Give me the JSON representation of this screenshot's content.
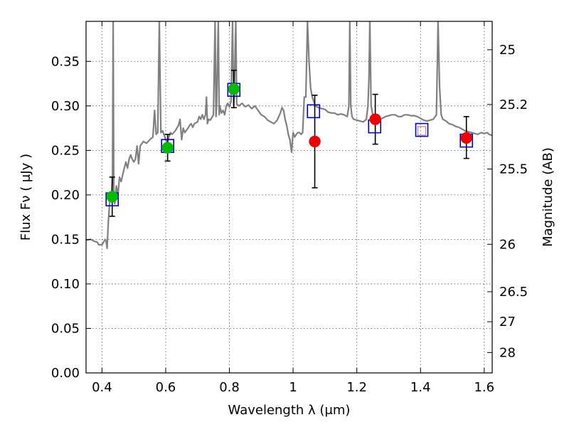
{
  "chart_data": {
    "type": "scatter",
    "xlabel": "Wavelength  λ (μm)",
    "ylabel": "Flux  Fν  ( μJy )",
    "ylabel_right": "Magnitude (AB)",
    "xlim": [
      0.35,
      1.625
    ],
    "ylim": [
      0.0,
      0.395
    ],
    "grid": true,
    "x_ticks": [
      {
        "value": 0.4,
        "label": "0.4"
      },
      {
        "value": 0.6,
        "label": "0.6"
      },
      {
        "value": 0.8,
        "label": "0.8"
      },
      {
        "value": 1.0,
        "label": "1"
      },
      {
        "value": 1.2,
        "label": "1.2"
      },
      {
        "value": 1.4,
        "label": "1.4"
      },
      {
        "value": 1.6,
        "label": "1.6"
      }
    ],
    "y_ticks": [
      {
        "value": 0.0,
        "label": "0.00"
      },
      {
        "value": 0.05,
        "label": "0.05"
      },
      {
        "value": 0.1,
        "label": "0.10"
      },
      {
        "value": 0.15,
        "label": "0.15"
      },
      {
        "value": 0.2,
        "label": "0.20"
      },
      {
        "value": 0.25,
        "label": "0.25"
      },
      {
        "value": 0.3,
        "label": "0.30"
      },
      {
        "value": 0.35,
        "label": "0.35"
      }
    ],
    "right_ticks": [
      {
        "flux": 0.3631,
        "label": "25"
      },
      {
        "flux": 0.3016,
        "label": "25.2"
      },
      {
        "flux": 0.2291,
        "label": "25.5"
      },
      {
        "flux": 0.1445,
        "label": "26"
      },
      {
        "flux": 0.0912,
        "label": "26.5"
      },
      {
        "flux": 0.0575,
        "label": "27"
      },
      {
        "flux": 0.0229,
        "label": "28"
      }
    ],
    "template_spectrum": {
      "color": "#808080",
      "points": [
        [
          0.35,
          0.149
        ],
        [
          0.365,
          0.15
        ],
        [
          0.375,
          0.148
        ],
        [
          0.385,
          0.147
        ],
        [
          0.39,
          0.144
        ],
        [
          0.4,
          0.144
        ],
        [
          0.405,
          0.147
        ],
        [
          0.41,
          0.15
        ],
        [
          0.413,
          0.148
        ],
        [
          0.416,
          0.14
        ],
        [
          0.42,
          0.17
        ],
        [
          0.425,
          0.195
        ],
        [
          0.43,
          0.2
        ],
        [
          0.433,
          0.22
        ],
        [
          0.435,
          0.395
        ],
        [
          0.437,
          0.2
        ],
        [
          0.44,
          0.19
        ],
        [
          0.445,
          0.21
        ],
        [
          0.45,
          0.2
        ],
        [
          0.455,
          0.22
        ],
        [
          0.46,
          0.215
        ],
        [
          0.47,
          0.23
        ],
        [
          0.475,
          0.237
        ],
        [
          0.48,
          0.23
        ],
        [
          0.485,
          0.24
        ],
        [
          0.49,
          0.245
        ],
        [
          0.495,
          0.24
        ],
        [
          0.5,
          0.237
        ],
        [
          0.505,
          0.24
        ],
        [
          0.51,
          0.255
        ],
        [
          0.515,
          0.235
        ],
        [
          0.52,
          0.255
        ],
        [
          0.53,
          0.26
        ],
        [
          0.54,
          0.258
        ],
        [
          0.55,
          0.262
        ],
        [
          0.56,
          0.265
        ],
        [
          0.565,
          0.295
        ],
        [
          0.57,
          0.268
        ],
        [
          0.575,
          0.27
        ],
        [
          0.58,
          0.395
        ],
        [
          0.585,
          0.27
        ],
        [
          0.59,
          0.272
        ],
        [
          0.6,
          0.262
        ],
        [
          0.605,
          0.258
        ],
        [
          0.61,
          0.265
        ],
        [
          0.615,
          0.27
        ],
        [
          0.62,
          0.268
        ],
        [
          0.63,
          0.272
        ],
        [
          0.635,
          0.275
        ],
        [
          0.64,
          0.278
        ],
        [
          0.645,
          0.285
        ],
        [
          0.65,
          0.262
        ],
        [
          0.655,
          0.275
        ],
        [
          0.66,
          0.27
        ],
        [
          0.67,
          0.275
        ],
        [
          0.675,
          0.278
        ],
        [
          0.68,
          0.28
        ],
        [
          0.685,
          0.276
        ],
        [
          0.69,
          0.28
        ],
        [
          0.7,
          0.282
        ],
        [
          0.705,
          0.288
        ],
        [
          0.71,
          0.285
        ],
        [
          0.715,
          0.29
        ],
        [
          0.72,
          0.285
        ],
        [
          0.725,
          0.29
        ],
        [
          0.728,
          0.31
        ],
        [
          0.731,
          0.28
        ],
        [
          0.735,
          0.285
        ],
        [
          0.74,
          0.284
        ],
        [
          0.745,
          0.287
        ],
        [
          0.75,
          0.29
        ],
        [
          0.755,
          0.395
        ],
        [
          0.758,
          0.288
        ],
        [
          0.76,
          0.3
        ],
        [
          0.765,
          0.395
        ],
        [
          0.768,
          0.29
        ],
        [
          0.77,
          0.3
        ],
        [
          0.775,
          0.292
        ],
        [
          0.78,
          0.295
        ],
        [
          0.785,
          0.29
        ],
        [
          0.79,
          0.3
        ],
        [
          0.795,
          0.303
        ],
        [
          0.8,
          0.299
        ],
        [
          0.805,
          0.305
        ],
        [
          0.81,
          0.395
        ],
        [
          0.813,
          0.3
        ],
        [
          0.815,
          0.31
        ],
        [
          0.82,
          0.395
        ],
        [
          0.823,
          0.302
        ],
        [
          0.83,
          0.3
        ],
        [
          0.84,
          0.303
        ],
        [
          0.85,
          0.299
        ],
        [
          0.86,
          0.301
        ],
        [
          0.87,
          0.297
        ],
        [
          0.88,
          0.3
        ],
        [
          0.89,
          0.295
        ],
        [
          0.9,
          0.29
        ],
        [
          0.91,
          0.288
        ],
        [
          0.92,
          0.284
        ],
        [
          0.93,
          0.282
        ],
        [
          0.94,
          0.28
        ],
        [
          0.95,
          0.284
        ],
        [
          0.96,
          0.292
        ],
        [
          0.965,
          0.298
        ],
        [
          0.97,
          0.295
        ],
        [
          0.975,
          0.285
        ],
        [
          0.98,
          0.278
        ],
        [
          0.985,
          0.268
        ],
        [
          0.99,
          0.262
        ],
        [
          0.995,
          0.248
        ],
        [
          1.0,
          0.27
        ],
        [
          1.005,
          0.265
        ],
        [
          1.01,
          0.268
        ],
        [
          1.015,
          0.27
        ],
        [
          1.02,
          0.27
        ],
        [
          1.025,
          0.268
        ],
        [
          1.03,
          0.27
        ],
        [
          1.035,
          0.31
        ],
        [
          1.04,
          0.31
        ],
        [
          1.045,
          0.395
        ],
        [
          1.05,
          0.35
        ],
        [
          1.055,
          0.32
        ],
        [
          1.06,
          0.31
        ],
        [
          1.065,
          0.305
        ],
        [
          1.07,
          0.3
        ],
        [
          1.08,
          0.298
        ],
        [
          1.09,
          0.297
        ],
        [
          1.1,
          0.296
        ],
        [
          1.11,
          0.293
        ],
        [
          1.12,
          0.292
        ],
        [
          1.13,
          0.292
        ],
        [
          1.14,
          0.29
        ],
        [
          1.15,
          0.291
        ],
        [
          1.16,
          0.29
        ],
        [
          1.17,
          0.288
        ],
        [
          1.175,
          0.3
        ],
        [
          1.178,
          0.395
        ],
        [
          1.181,
          0.3
        ],
        [
          1.185,
          0.288
        ],
        [
          1.19,
          0.285
        ],
        [
          1.2,
          0.284
        ],
        [
          1.21,
          0.283
        ],
        [
          1.22,
          0.282
        ],
        [
          1.23,
          0.285
        ],
        [
          1.235,
          0.3
        ],
        [
          1.238,
          0.33
        ],
        [
          1.241,
          0.395
        ],
        [
          1.245,
          0.3
        ],
        [
          1.25,
          0.29
        ],
        [
          1.26,
          0.285
        ],
        [
          1.27,
          0.285
        ],
        [
          1.28,
          0.286
        ],
        [
          1.29,
          0.288
        ],
        [
          1.3,
          0.289
        ],
        [
          1.31,
          0.29
        ],
        [
          1.32,
          0.29
        ],
        [
          1.33,
          0.288
        ],
        [
          1.34,
          0.288
        ],
        [
          1.35,
          0.29
        ],
        [
          1.36,
          0.29
        ],
        [
          1.37,
          0.289
        ],
        [
          1.38,
          0.289
        ],
        [
          1.39,
          0.288
        ],
        [
          1.4,
          0.286
        ],
        [
          1.41,
          0.284
        ],
        [
          1.42,
          0.283
        ],
        [
          1.43,
          0.284
        ],
        [
          1.44,
          0.285
        ],
        [
          1.45,
          0.29
        ],
        [
          1.455,
          0.395
        ],
        [
          1.46,
          0.32
        ],
        [
          1.465,
          0.29
        ],
        [
          1.47,
          0.285
        ],
        [
          1.48,
          0.283
        ],
        [
          1.49,
          0.28
        ],
        [
          1.5,
          0.279
        ],
        [
          1.51,
          0.277
        ],
        [
          1.52,
          0.276
        ],
        [
          1.53,
          0.274
        ],
        [
          1.54,
          0.272
        ],
        [
          1.55,
          0.271
        ],
        [
          1.56,
          0.27
        ],
        [
          1.57,
          0.269
        ],
        [
          1.58,
          0.268
        ],
        [
          1.59,
          0.27
        ],
        [
          1.6,
          0.269
        ],
        [
          1.61,
          0.27
        ],
        [
          1.615,
          0.268
        ],
        [
          1.625,
          0.267
        ]
      ]
    },
    "series": [
      {
        "marker": "circle",
        "color": "#00bb00",
        "points": [
          {
            "x": 0.432,
            "y": 0.198,
            "yerr_low": 0.176,
            "yerr_high": 0.22
          },
          {
            "x": 0.606,
            "y": 0.253,
            "yerr_low": 0.238,
            "yerr_high": 0.268
          },
          {
            "x": 0.814,
            "y": 0.319,
            "yerr_low": 0.298,
            "yerr_high": 0.34
          }
        ]
      },
      {
        "marker": "circle",
        "color": "#ee0000",
        "points": [
          {
            "x": 1.068,
            "y": 0.26,
            "yerr_low": 0.208,
            "yerr_high": 0.312
          },
          {
            "x": 1.258,
            "y": 0.285,
            "yerr_low": 0.257,
            "yerr_high": 0.313
          },
          {
            "x": 1.544,
            "y": 0.264,
            "yerr_low": 0.241,
            "yerr_high": 0.288
          }
        ]
      },
      {
        "marker": "square-open",
        "color": "#0000cc",
        "points": [
          {
            "x": 0.432,
            "y": 0.195
          },
          {
            "x": 0.606,
            "y": 0.255
          },
          {
            "x": 0.814,
            "y": 0.318
          },
          {
            "x": 1.064,
            "y": 0.294
          },
          {
            "x": 1.256,
            "y": 0.277
          },
          {
            "x": 1.404,
            "y": 0.273
          },
          {
            "x": 1.544,
            "y": 0.261
          }
        ]
      },
      {
        "marker": "square-small",
        "color": "#cc8888",
        "points": [
          {
            "x": 1.404,
            "y": 0.272
          }
        ]
      }
    ]
  }
}
